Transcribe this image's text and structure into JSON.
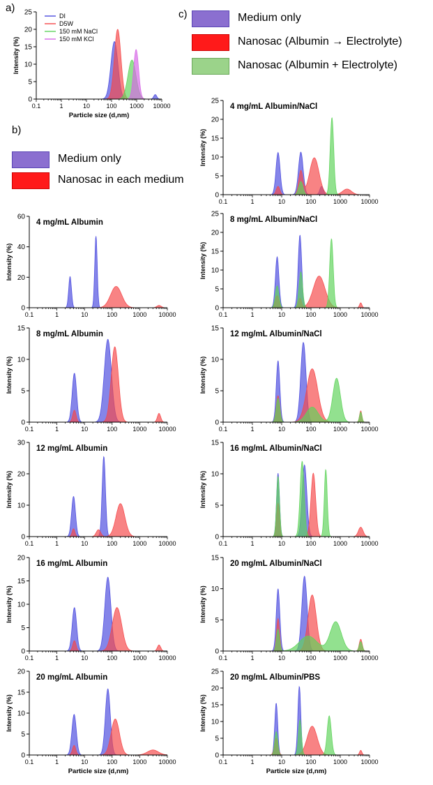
{
  "colors": {
    "blue": "#4b4bde",
    "red": "#f5484a",
    "green": "#5ed35a",
    "magenta": "#d667e6",
    "brown": "#9a7a3a",
    "purple_swatch": "#8b6fd0",
    "red_swatch": "#ff1a1a",
    "green_swatch": "#9bd38a"
  },
  "panel_labels": {
    "a": "a)",
    "b": "b)",
    "c": "c)"
  },
  "legend_b": [
    {
      "label": "Medium only",
      "color": "#8b6fd0"
    },
    {
      "label": "Nanosac in each medium",
      "color": "#ff1a1a"
    }
  ],
  "legend_c": [
    {
      "label": "Medium only",
      "color": "#8b6fd0"
    },
    {
      "label": "Nanosac  (Albumin → Electrolyte)",
      "color": "#ff1a1a"
    },
    {
      "label": "Nanosac  (Albumin + Electrolyte)",
      "color": "#9bd38a"
    }
  ],
  "x_tick_labels": [
    "0.1",
    "1",
    "10",
    "100",
    "1000",
    "10000"
  ],
  "chart_data": [
    {
      "id": "a",
      "type": "area",
      "title": "",
      "xlabel": "Particle size (d,nm)",
      "ylabel": "Intensity (%)",
      "xscale": "log",
      "xlim": [
        0.1,
        10000
      ],
      "ylim": [
        0,
        25
      ],
      "yticks": [
        0,
        5,
        10,
        15,
        20,
        25
      ],
      "legend": "top-left",
      "series": [
        {
          "name": "DI",
          "color": "#4b4bde",
          "peaks": [
            [
              130,
              16.5,
              0.14
            ],
            [
              5500,
              1.3,
              0.06
            ]
          ]
        },
        {
          "name": "D5W",
          "color": "#f5484a",
          "peaks": [
            [
              175,
              20,
              0.13
            ]
          ]
        },
        {
          "name": "150 mM NaCl",
          "color": "#5ed35a",
          "peaks": [
            [
              650,
              11.2,
              0.16
            ]
          ]
        },
        {
          "name": "150 mM KCl",
          "color": "#d667e6",
          "peaks": [
            [
              950,
              14.2,
              0.1
            ]
          ]
        }
      ]
    },
    {
      "id": "b1",
      "type": "area",
      "title": "4 mg/mL Albumin",
      "xlabel": "",
      "ylabel": "Intensity (%)",
      "xscale": "log",
      "xlim": [
        0.1,
        10000
      ],
      "ylim": [
        0,
        60
      ],
      "yticks": [
        0,
        20,
        40,
        60
      ],
      "series": [
        {
          "color": "#4b4bde",
          "peaks": [
            [
              3.0,
              20.5,
              0.05
            ],
            [
              26,
              47,
              0.045
            ]
          ]
        },
        {
          "color": "#f5484a",
          "peaks": [
            [
              140,
              14,
              0.2
            ],
            [
              5000,
              1.5,
              0.08
            ]
          ]
        }
      ]
    },
    {
      "id": "b2",
      "type": "area",
      "title": "8 mg/mL Albumin",
      "xlabel": "",
      "ylabel": "Intensity (%)",
      "xscale": "log",
      "xlim": [
        0.1,
        10000
      ],
      "ylim": [
        0,
        15
      ],
      "yticks": [
        0,
        5,
        10,
        15
      ],
      "series": [
        {
          "color": "#4b4bde",
          "peaks": [
            [
              4.3,
              7.8,
              0.08
            ],
            [
              70,
              13.2,
              0.13
            ]
          ]
        },
        {
          "color": "#f5484a",
          "peaks": [
            [
              4.3,
              1.9,
              0.06
            ],
            [
              125,
              12,
              0.13
            ],
            [
              5000,
              1.4,
              0.06
            ]
          ]
        }
      ]
    },
    {
      "id": "b3",
      "type": "area",
      "title": "12 mg/mL Albumin",
      "xlabel": "",
      "ylabel": "Intensity (%)",
      "xscale": "log",
      "xlim": [
        0.1,
        10000
      ],
      "ylim": [
        0,
        30
      ],
      "yticks": [
        0,
        10,
        20,
        30
      ],
      "series": [
        {
          "color": "#4b4bde",
          "peaks": [
            [
              4.0,
              12.8,
              0.07
            ],
            [
              50,
              25.5,
              0.06
            ]
          ]
        },
        {
          "color": "#f5484a",
          "peaks": [
            [
              4.0,
              2.5,
              0.05
            ],
            [
              32,
              2.2,
              0.08
            ],
            [
              200,
              10.5,
              0.16
            ]
          ]
        }
      ]
    },
    {
      "id": "b4",
      "type": "area",
      "title": "16 mg/mL Albumin",
      "xlabel": "",
      "ylabel": "Intensity (%)",
      "xscale": "log",
      "xlim": [
        0.1,
        10000
      ],
      "ylim": [
        0,
        20
      ],
      "yticks": [
        0,
        5,
        10,
        15,
        20
      ],
      "series": [
        {
          "color": "#4b4bde",
          "peaks": [
            [
              4.3,
              9.3,
              0.08
            ],
            [
              70,
              15.8,
              0.11
            ]
          ]
        },
        {
          "color": "#f5484a",
          "peaks": [
            [
              4.3,
              2.2,
              0.06
            ],
            [
              150,
              9.3,
              0.17
            ],
            [
              5000,
              1.3,
              0.06
            ]
          ]
        }
      ]
    },
    {
      "id": "b5",
      "type": "area",
      "title": "20 mg/mL Albumin",
      "xlabel": "Particle size (d,nm)",
      "ylabel": "Intensity (%)",
      "xscale": "log",
      "xlim": [
        0.1,
        10000
      ],
      "ylim": [
        0,
        20
      ],
      "yticks": [
        0,
        5,
        10,
        15,
        20
      ],
      "series": [
        {
          "color": "#4b4bde",
          "peaks": [
            [
              4.2,
              9.7,
              0.08
            ],
            [
              70,
              15.8,
              0.09
            ]
          ]
        },
        {
          "color": "#f5484a",
          "peaks": [
            [
              4.2,
              2.3,
              0.06
            ],
            [
              130,
              8.6,
              0.15
            ],
            [
              3000,
              1.2,
              0.2
            ]
          ]
        }
      ]
    },
    {
      "id": "c1",
      "type": "area",
      "title": "4 mg/mL Albumin/NaCl",
      "xlabel": "",
      "ylabel": "Intensity (%)",
      "xscale": "log",
      "xlim": [
        0.1,
        10000
      ],
      "ylim": [
        0,
        25
      ],
      "yticks": [
        0,
        5,
        10,
        15,
        20,
        25
      ],
      "series": [
        {
          "color": "#4b4bde",
          "peaks": [
            [
              7.5,
              11.2,
              0.07
            ],
            [
              45,
              11.3,
              0.08
            ],
            [
              230,
              2.2,
              0.06
            ]
          ]
        },
        {
          "color": "#f5484a",
          "peaks": [
            [
              7.5,
              2.2,
              0.06
            ],
            [
              45,
              6.3,
              0.07
            ],
            [
              130,
              9.8,
              0.16
            ],
            [
              1700,
              1.5,
              0.15
            ]
          ]
        },
        {
          "color": "#5ed35a",
          "peaks": [
            [
              45,
              3.5,
              0.07
            ],
            [
              520,
              20.5,
              0.06
            ]
          ]
        }
      ]
    },
    {
      "id": "c2",
      "type": "area",
      "title": "8 mg/mL Albumin/NaCl",
      "xlabel": "",
      "ylabel": "Intensity (%)",
      "xscale": "log",
      "xlim": [
        0.1,
        10000
      ],
      "ylim": [
        0,
        25
      ],
      "yticks": [
        0,
        5,
        10,
        15,
        20,
        25
      ],
      "series": [
        {
          "color": "#4b4bde",
          "peaks": [
            [
              7.0,
              13.5,
              0.06
            ],
            [
              42,
              19.3,
              0.06
            ]
          ]
        },
        {
          "color": "#f5484a",
          "peaks": [
            [
              7.0,
              3.2,
              0.06
            ],
            [
              42,
              2.5,
              0.05
            ],
            [
              190,
              8.4,
              0.2
            ],
            [
              5000,
              1.3,
              0.04
            ]
          ]
        },
        {
          "color": "#5ed35a",
          "peaks": [
            [
              7.0,
              5.8,
              0.06
            ],
            [
              45,
              9.5,
              0.06
            ],
            [
              500,
              18.3,
              0.06
            ]
          ]
        }
      ]
    },
    {
      "id": "c3",
      "type": "area",
      "title": "12 mg/mL Albumin/NaCl",
      "xlabel": "",
      "ylabel": "Intensity (%)",
      "xscale": "log",
      "xlim": [
        0.1,
        10000
      ],
      "ylim": [
        0,
        15
      ],
      "yticks": [
        0,
        5,
        10,
        15
      ],
      "series": [
        {
          "color": "#4b4bde",
          "peaks": [
            [
              7.5,
              9.8,
              0.06
            ],
            [
              55,
              12.7,
              0.09
            ]
          ]
        },
        {
          "color": "#f5484a",
          "peaks": [
            [
              7.5,
              4.2,
              0.06
            ],
            [
              110,
              8.5,
              0.19
            ],
            [
              5000,
              1.8,
              0.04
            ]
          ]
        },
        {
          "color": "#5ed35a",
          "peaks": [
            [
              7.5,
              3.8,
              0.06
            ],
            [
              110,
              2.4,
              0.2
            ],
            [
              750,
              7.0,
              0.13
            ],
            [
              5000,
              1.6,
              0.04
            ]
          ]
        }
      ]
    },
    {
      "id": "c4",
      "type": "area",
      "title": "16 mg/mL Albumin/NaCl",
      "xlabel": "",
      "ylabel": "Intensity (%)",
      "xscale": "log",
      "xlim": [
        0.1,
        10000
      ],
      "ylim": [
        0,
        15
      ],
      "yticks": [
        0,
        5,
        10,
        15
      ],
      "series": [
        {
          "color": "#4b4bde",
          "peaks": [
            [
              7.5,
              10.1,
              0.05
            ],
            [
              60,
              11.4,
              0.08
            ]
          ]
        },
        {
          "color": "#f5484a",
          "peaks": [
            [
              7.5,
              5.3,
              0.05
            ],
            [
              120,
              10.1,
              0.08
            ],
            [
              5000,
              1.5,
              0.08
            ]
          ]
        },
        {
          "color": "#5ed35a",
          "peaks": [
            [
              7.5,
              9.6,
              0.05
            ],
            [
              50,
              12.0,
              0.07
            ],
            [
              320,
              10.7,
              0.05
            ]
          ]
        }
      ]
    },
    {
      "id": "c5",
      "type": "area",
      "title": "20 mg/mL Albumin/NaCl",
      "xlabel": "",
      "ylabel": "Intensity (%)",
      "xscale": "log",
      "xlim": [
        0.1,
        10000
      ],
      "ylim": [
        0,
        15
      ],
      "yticks": [
        0,
        5,
        10,
        15
      ],
      "series": [
        {
          "color": "#4b4bde",
          "peaks": [
            [
              7.5,
              10.0,
              0.06
            ],
            [
              60,
              12.0,
              0.09
            ]
          ]
        },
        {
          "color": "#f5484a",
          "peaks": [
            [
              7.5,
              5.2,
              0.05
            ],
            [
              110,
              9.0,
              0.14
            ],
            [
              5000,
              1.9,
              0.05
            ]
          ]
        },
        {
          "color": "#5ed35a",
          "peaks": [
            [
              7.5,
              3.5,
              0.05
            ],
            [
              80,
              2.4,
              0.3
            ],
            [
              700,
              4.7,
              0.19
            ],
            [
              5000,
              1.5,
              0.05
            ]
          ]
        }
      ]
    },
    {
      "id": "c6",
      "type": "area",
      "title": "20 mg/mL Albumin/PBS",
      "xlabel": "Particle size (d,nm)",
      "ylabel": "Intensity (%)",
      "xscale": "log",
      "xlim": [
        0.1,
        10000
      ],
      "ylim": [
        0,
        25
      ],
      "yticks": [
        0,
        5,
        10,
        15,
        20,
        25
      ],
      "series": [
        {
          "color": "#4b4bde",
          "peaks": [
            [
              6.5,
              15.5,
              0.05
            ],
            [
              40,
              20.5,
              0.05
            ]
          ]
        },
        {
          "color": "#f5484a",
          "peaks": [
            [
              6.5,
              5.0,
              0.06
            ],
            [
              110,
              8.6,
              0.17
            ],
            [
              5000,
              1.4,
              0.04
            ]
          ]
        },
        {
          "color": "#5ed35a",
          "peaks": [
            [
              6.5,
              7.0,
              0.05
            ],
            [
              42,
              10.5,
              0.05
            ],
            [
              420,
              11.7,
              0.07
            ]
          ]
        }
      ]
    }
  ]
}
